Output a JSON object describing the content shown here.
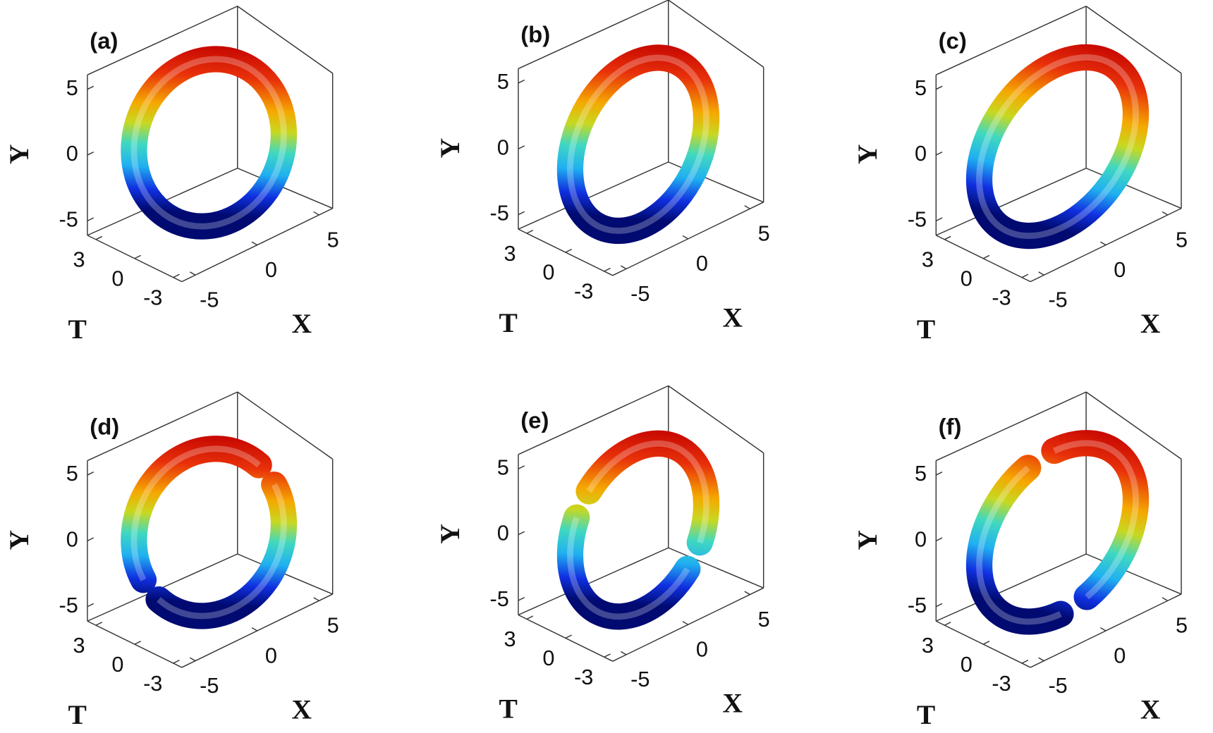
{
  "panels": [
    {
      "label": "(a)",
      "x_title": "X",
      "y_title": "Y",
      "t_title": "T",
      "x_ticks": [
        -5,
        0,
        5
      ],
      "y_ticks": [
        -5,
        0,
        5
      ],
      "t_ticks": [
        -3,
        0,
        3
      ]
    },
    {
      "label": "(b)",
      "x_title": "X",
      "y_title": "Y",
      "t_title": "T",
      "x_ticks": [
        -5,
        0,
        5
      ],
      "y_ticks": [
        -5,
        0,
        5
      ],
      "t_ticks": [
        -3,
        0,
        3
      ]
    },
    {
      "label": "(c)",
      "x_title": "X",
      "y_title": "Y",
      "t_title": "T",
      "x_ticks": [
        -5,
        0,
        5
      ],
      "y_ticks": [
        -5,
        0,
        5
      ],
      "t_ticks": [
        -3,
        0,
        3
      ]
    },
    {
      "label": "(d)",
      "x_title": "X",
      "y_title": "Y",
      "t_title": "T",
      "x_ticks": [
        -5,
        0,
        5
      ],
      "y_ticks": [
        -5,
        0,
        5
      ],
      "t_ticks": [
        -3,
        0,
        3
      ]
    },
    {
      "label": "(e)",
      "x_title": "X",
      "y_title": "Y",
      "t_title": "T",
      "x_ticks": [
        -5,
        0,
        5
      ],
      "y_ticks": [
        -5,
        0,
        5
      ],
      "t_ticks": [
        -3,
        0,
        3
      ]
    },
    {
      "label": "(f)",
      "x_title": "X",
      "y_title": "Y",
      "t_title": "T",
      "x_ticks": [
        -5,
        0,
        5
      ],
      "y_ticks": [
        -5,
        0,
        5
      ],
      "t_ticks": [
        -3,
        0,
        3
      ]
    }
  ]
}
